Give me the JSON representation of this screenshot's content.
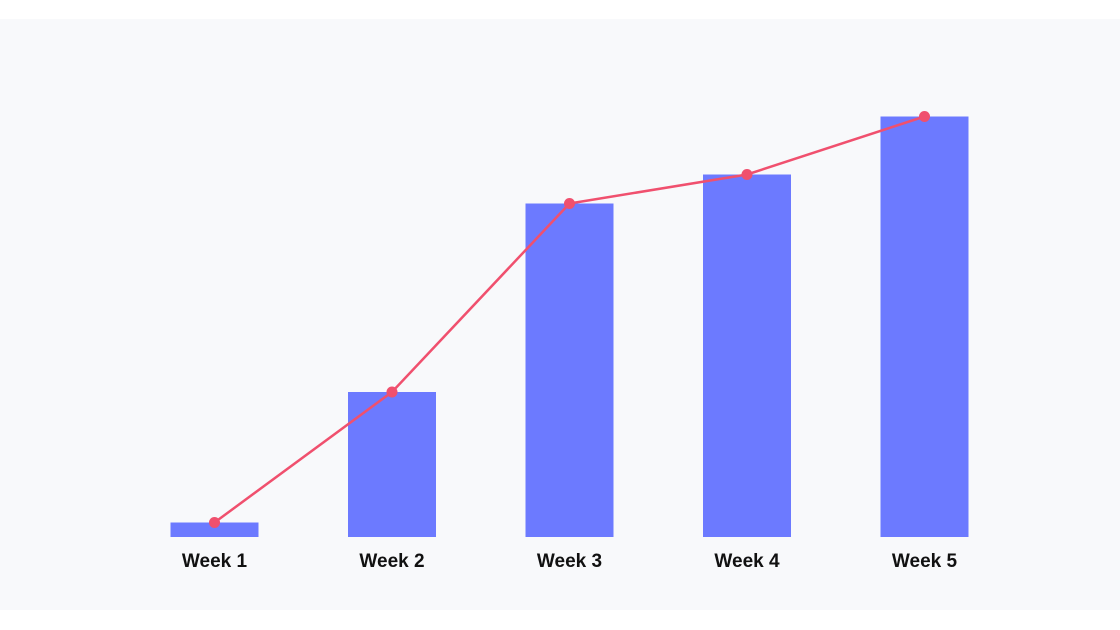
{
  "chart_data": {
    "type": "bar",
    "categories": [
      "Week 1",
      "Week 2",
      "Week 3",
      "Week 4",
      "Week 5"
    ],
    "series": [
      {
        "type": "bar",
        "values": [
          1,
          10,
          23,
          25,
          29
        ]
      },
      {
        "type": "line",
        "values": [
          1,
          10,
          23,
          25,
          29
        ]
      }
    ],
    "ylim": [
      0,
      30
    ],
    "grid": false,
    "title": "",
    "xlabel": "",
    "ylabel": ""
  },
  "colors": {
    "bar": "#6c7aff",
    "line": "#f0506e",
    "panel": "#f8f9fb"
  }
}
